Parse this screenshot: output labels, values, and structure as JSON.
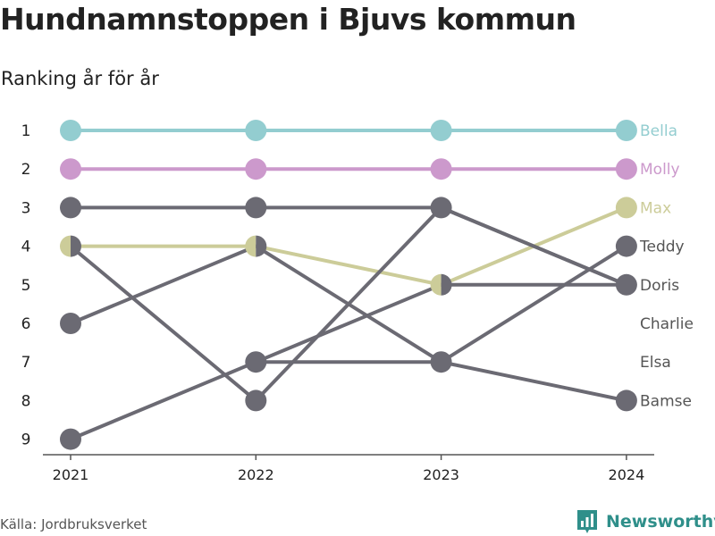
{
  "title": "Hundnamnstoppen i Bjuvs kommun",
  "subtitle": "Ranking år för år",
  "source": "Källa: Jordbruksverket",
  "brand": {
    "name": "Newsworthy",
    "icon": "newsworthy-logo-icon",
    "color": "#2f8f8a"
  },
  "chart_data": {
    "type": "line",
    "chart_kind": "bump",
    "x": [
      "2021",
      "2022",
      "2023",
      "2024"
    ],
    "y_ticks": [
      1,
      2,
      3,
      4,
      5,
      6,
      7,
      8,
      9
    ],
    "ylim": [
      1,
      9
    ],
    "y_inverted": true,
    "grid": false,
    "series": [
      {
        "name": "Bella",
        "ranks": [
          1,
          1,
          1,
          1
        ],
        "color": "#93cdd0"
      },
      {
        "name": "Molly",
        "ranks": [
          2,
          2,
          2,
          2
        ],
        "color": "#cc99cc"
      },
      {
        "name": "Max",
        "ranks": [
          4,
          4,
          5,
          3
        ],
        "color": "#cccc99"
      },
      {
        "name": "Teddy",
        "ranks": [
          6,
          4,
          7,
          4
        ],
        "color": "#6b6a73"
      },
      {
        "name": "Doris",
        "ranks": [
          4,
          8,
          3,
          5
        ],
        "color": "#6b6a73"
      },
      {
        "name": "Charlie",
        "ranks": [
          3,
          3,
          3,
          5
        ],
        "color": "#6b6a73"
      },
      {
        "name": "Elsa",
        "ranks": [
          null,
          7,
          5,
          5
        ],
        "color": "#6b6a73"
      },
      {
        "name": "Bamse",
        "ranks": [
          9,
          7,
          7,
          8
        ],
        "color": "#6b6a73"
      }
    ],
    "end_labels": [
      {
        "text": "Bella",
        "rank": 1,
        "color": "#93cdd0"
      },
      {
        "text": "Molly",
        "rank": 2,
        "color": "#cc99cc"
      },
      {
        "text": "Max",
        "rank": 3,
        "color": "#cccc99"
      },
      {
        "text": "Teddy",
        "rank": 4,
        "color": "#555555"
      },
      {
        "text": "Doris",
        "rank": 5,
        "color": "#555555"
      },
      {
        "text": "Charlie",
        "rank": 6,
        "color": "#555555"
      },
      {
        "text": "Elsa",
        "rank": 7,
        "color": "#555555"
      },
      {
        "text": "Bamse",
        "rank": 8,
        "color": "#555555"
      }
    ]
  }
}
